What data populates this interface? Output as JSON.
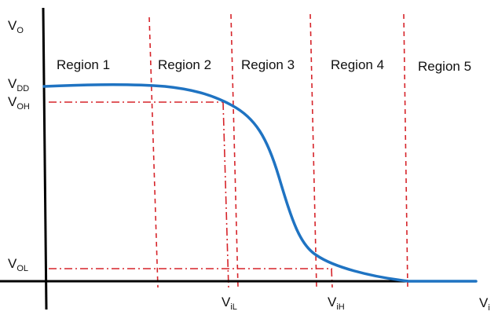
{
  "axes": {
    "y_label": {
      "main": "V",
      "sub": "O"
    },
    "x_label": {
      "main": "V",
      "sub": "i"
    }
  },
  "levels": [
    {
      "id": "vdd",
      "main": "V",
      "sub": "DD"
    },
    {
      "id": "voh",
      "main": "V",
      "sub": "OH"
    },
    {
      "id": "vol",
      "main": "V",
      "sub": "OL"
    }
  ],
  "thresholds": [
    {
      "id": "vil",
      "main": "V",
      "sub": "iL"
    },
    {
      "id": "vih",
      "main": "V",
      "sub": "iH"
    }
  ],
  "regions": [
    "Region 1",
    "Region 2",
    "Region 3",
    "Region 4",
    "Region 5"
  ],
  "colors": {
    "curve": "#1f73c2",
    "guides": "#d6242a",
    "axes": "#000000",
    "text": "#111111"
  }
}
